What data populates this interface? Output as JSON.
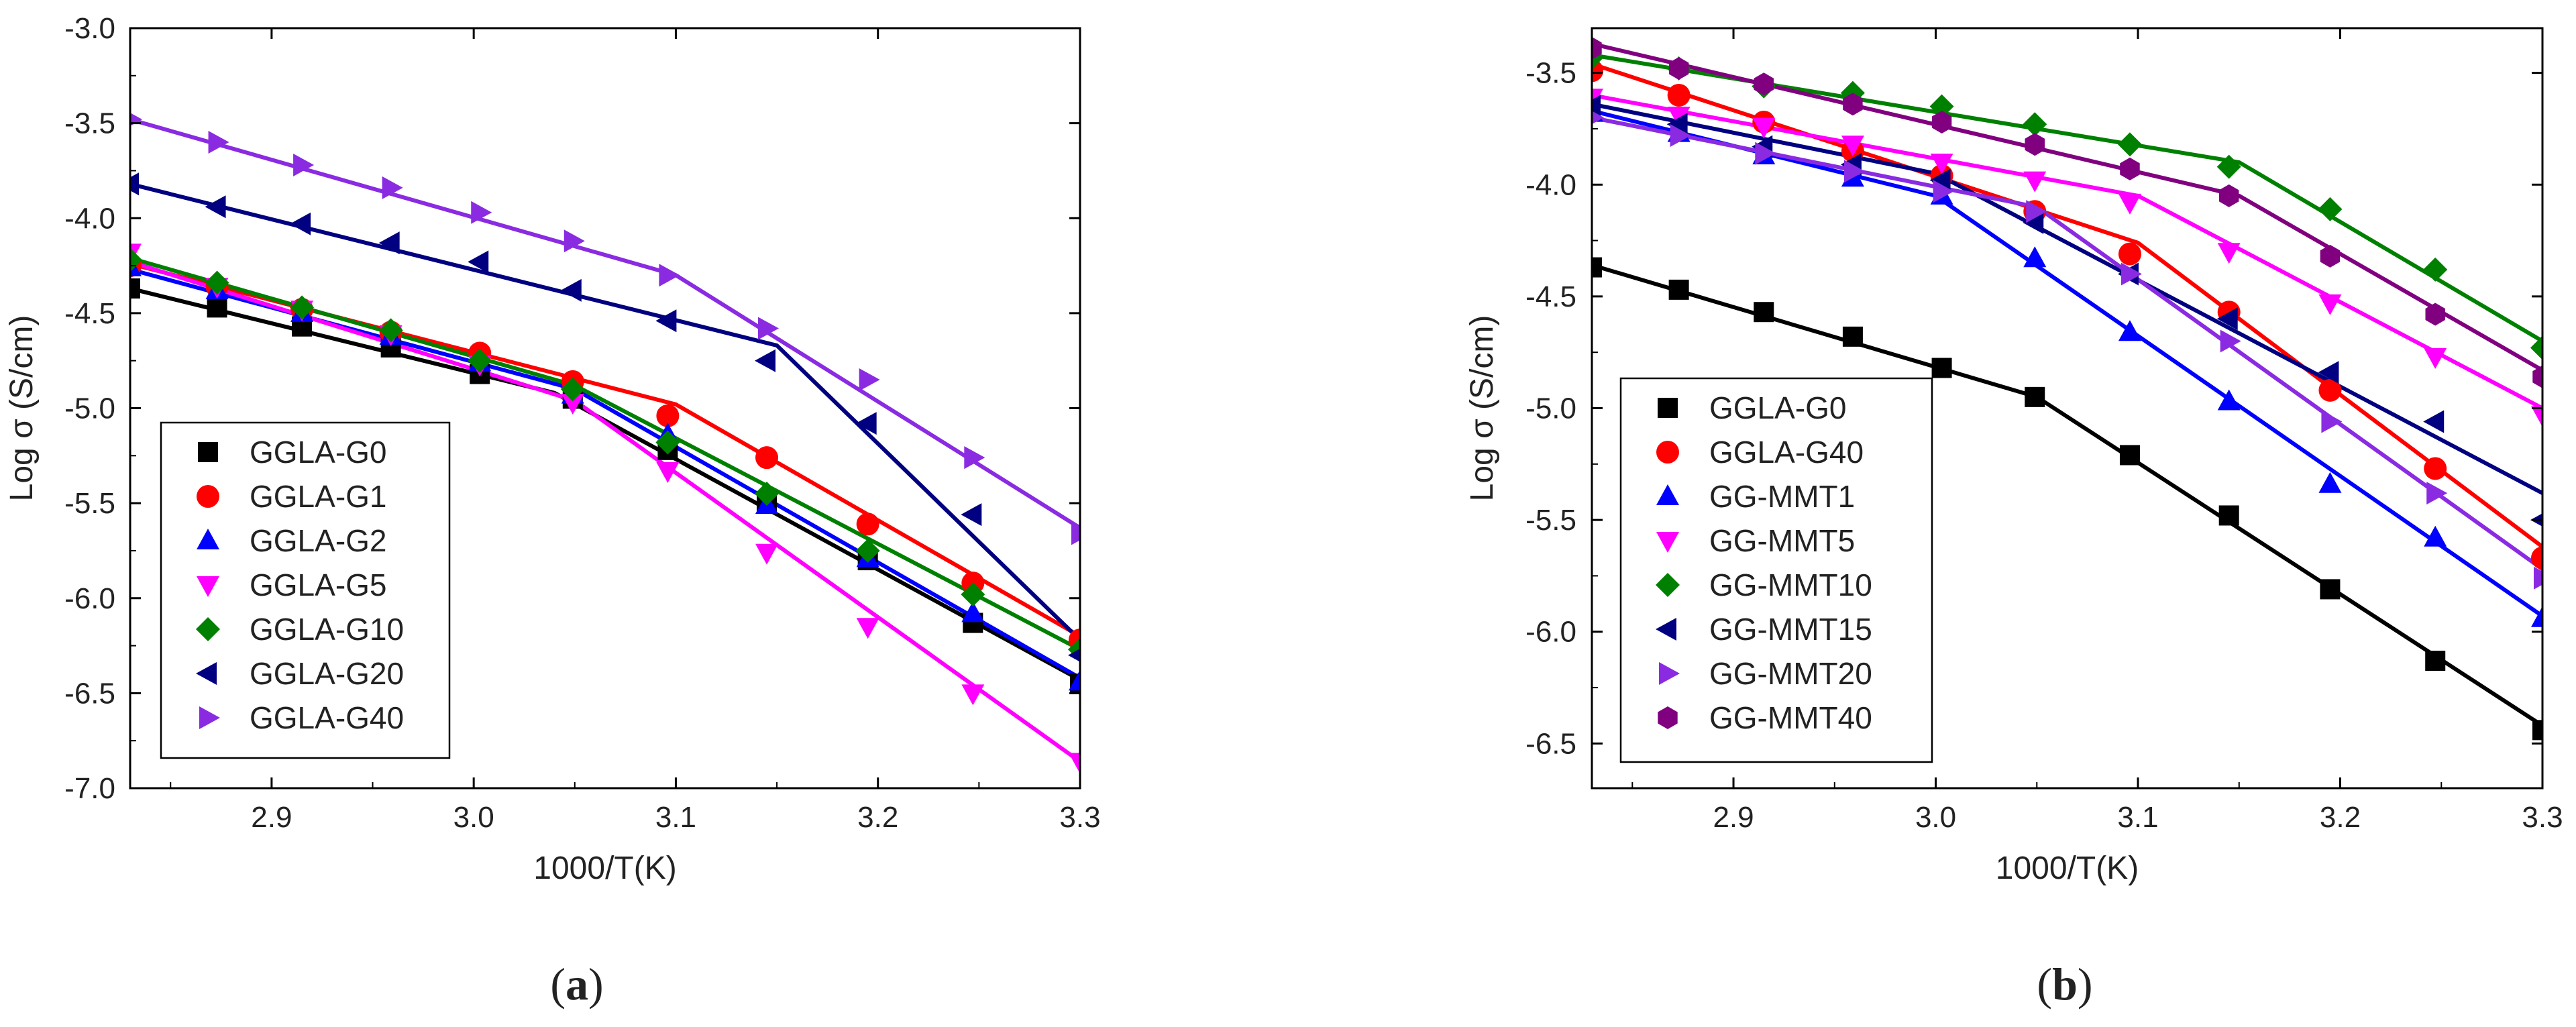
{
  "chart_data": [
    {
      "type": "scatter",
      "panel_label": {
        "open": "(",
        "letter": "a",
        "close": ")"
      },
      "xlabel": "1000/T(K)",
      "ylabel": "Log σ (S/cm)",
      "xlim": [
        2.83,
        3.3
      ],
      "ylim": [
        -7.0,
        -3.0
      ],
      "xticks": [
        2.9,
        3.0,
        3.1,
        3.2,
        3.3
      ],
      "xtick_labels": [
        "2.9",
        "3.0",
        "3.1",
        "3.2",
        "3.3"
      ],
      "yticks": [
        -3.0,
        -3.5,
        -4.0,
        -4.5,
        -5.0,
        -5.5,
        -6.0,
        -6.5,
        -7.0
      ],
      "ytick_labels": [
        "-3.0",
        "-3.5",
        "-4.0",
        "-4.5",
        "-5.0",
        "-5.5",
        "-6.0",
        "-6.5",
        "-7.0"
      ],
      "grid": false,
      "legend": "bottom-left",
      "series": [
        {
          "name": "GGLA-G0",
          "color": "#000000",
          "marker": "square",
          "x": [
            2.83,
            2.873,
            2.915,
            2.959,
            3.003,
            3.049,
            3.096,
            3.145,
            3.195,
            3.247,
            3.3
          ],
          "y": [
            -4.37,
            -4.47,
            -4.57,
            -4.68,
            -4.82,
            -4.95,
            -5.22,
            -5.49,
            -5.8,
            -6.13,
            -6.45
          ],
          "fit": [
            [
              2.83,
              -4.37
            ],
            [
              3.04,
              -4.92
            ],
            [
              3.3,
              -6.43
            ]
          ]
        },
        {
          "name": "GGLA-G1",
          "color": "#ff0000",
          "marker": "circle",
          "x": [
            2.83,
            2.873,
            2.915,
            2.959,
            3.003,
            3.049,
            3.096,
            3.145,
            3.195,
            3.247,
            3.3
          ],
          "y": [
            -4.25,
            -4.36,
            -4.48,
            -4.6,
            -4.71,
            -4.86,
            -5.04,
            -5.26,
            -5.61,
            -5.92,
            -6.22
          ],
          "fit": [
            [
              2.83,
              -4.24
            ],
            [
              3.1,
              -4.98
            ],
            [
              3.3,
              -6.2
            ]
          ]
        },
        {
          "name": "GGLA-G2",
          "color": "#0000ff",
          "marker": "triangle-up",
          "x": [
            2.83,
            2.873,
            2.915,
            2.959,
            3.003,
            3.049,
            3.096,
            3.145,
            3.195,
            3.247,
            3.3
          ],
          "y": [
            -4.26,
            -4.38,
            -4.5,
            -4.62,
            -4.76,
            -4.93,
            -5.14,
            -5.51,
            -5.79,
            -6.08,
            -6.44
          ],
          "fit": [
            [
              2.83,
              -4.27
            ],
            [
              3.05,
              -4.9
            ],
            [
              3.3,
              -6.42
            ]
          ]
        },
        {
          "name": "GGLA-G5",
          "color": "#ff00ff",
          "marker": "triangle-down",
          "x": [
            2.83,
            2.873,
            2.915,
            2.959,
            3.003,
            3.049,
            3.096,
            3.145,
            3.195,
            3.247,
            3.3
          ],
          "y": [
            -4.18,
            -4.36,
            -4.48,
            -4.61,
            -4.77,
            -4.97,
            -5.33,
            -5.76,
            -6.15,
            -6.5,
            -6.86
          ],
          "fit": [
            [
              2.83,
              -4.23
            ],
            [
              3.05,
              -4.96
            ],
            [
              3.3,
              -6.86
            ]
          ]
        },
        {
          "name": "GGLA-G10",
          "color": "#008000",
          "marker": "diamond",
          "x": [
            2.83,
            2.873,
            2.915,
            2.959,
            3.003,
            3.049,
            3.096,
            3.145,
            3.195,
            3.247,
            3.3
          ],
          "y": [
            -4.22,
            -4.34,
            -4.47,
            -4.59,
            -4.75,
            -4.9,
            -5.18,
            -5.45,
            -5.75,
            -5.98,
            -6.27
          ],
          "fit": [
            [
              2.83,
              -4.21
            ],
            [
              3.05,
              -4.88
            ],
            [
              3.3,
              -6.27
            ]
          ]
        },
        {
          "name": "GGLA-G20",
          "color": "#000080",
          "marker": "triangle-left",
          "x": [
            2.83,
            2.873,
            2.915,
            2.959,
            3.003,
            3.049,
            3.096,
            3.145,
            3.195,
            3.247,
            3.3
          ],
          "y": [
            -3.82,
            -3.94,
            -4.03,
            -4.13,
            -4.23,
            -4.38,
            -4.54,
            -4.75,
            -5.08,
            -5.56,
            -6.3
          ],
          "fit": [
            [
              2.83,
              -3.82
            ],
            [
              3.15,
              -4.67
            ],
            [
              3.3,
              -6.22
            ]
          ]
        },
        {
          "name": "GGLA-G40",
          "color": "#8a2be2",
          "marker": "triangle-right",
          "x": [
            2.83,
            2.873,
            2.915,
            2.959,
            3.003,
            3.049,
            3.096,
            3.145,
            3.195,
            3.247,
            3.3
          ],
          "y": [
            -3.48,
            -3.6,
            -3.72,
            -3.84,
            -3.97,
            -4.12,
            -4.3,
            -4.58,
            -4.85,
            -5.26,
            -5.66
          ],
          "fit": [
            [
              2.83,
              -3.48
            ],
            [
              3.1,
              -4.3
            ],
            [
              3.3,
              -5.63
            ]
          ]
        }
      ]
    },
    {
      "type": "scatter",
      "panel_label": {
        "open": "(",
        "letter": "b",
        "close": ")"
      },
      "xlabel": "1000/T(K)",
      "ylabel": "Log σ (S/cm)",
      "xlim": [
        2.83,
        3.3
      ],
      "ylim": [
        -6.7,
        -3.3
      ],
      "xticks": [
        2.9,
        3.0,
        3.1,
        3.2,
        3.3
      ],
      "xtick_labels": [
        "2.9",
        "3.0",
        "3.1",
        "3.2",
        "3.3"
      ],
      "yticks": [
        -3.5,
        -4.0,
        -4.5,
        -5.0,
        -5.5,
        -6.0,
        -6.5
      ],
      "ytick_labels": [
        "-3.5",
        "-4.0",
        "-4.5",
        "-5.0",
        "-5.5",
        "-6.0",
        "-6.5"
      ],
      "grid": false,
      "legend": "bottom-left",
      "series": [
        {
          "name": "GGLA-G0",
          "color": "#000000",
          "marker": "square",
          "x": [
            2.83,
            2.873,
            2.915,
            2.959,
            3.003,
            3.049,
            3.096,
            3.145,
            3.195,
            3.247,
            3.3
          ],
          "y": [
            -4.37,
            -4.47,
            -4.57,
            -4.68,
            -4.82,
            -4.95,
            -5.21,
            -5.48,
            -5.81,
            -6.13,
            -6.44
          ],
          "fit": [
            [
              2.83,
              -4.36
            ],
            [
              3.05,
              -4.95
            ],
            [
              3.3,
              -6.42
            ]
          ]
        },
        {
          "name": "GGLA-G40",
          "color": "#ff0000",
          "marker": "circle",
          "x": [
            2.83,
            2.873,
            2.915,
            2.959,
            3.003,
            3.049,
            3.096,
            3.145,
            3.195,
            3.247,
            3.3
          ],
          "y": [
            -3.49,
            -3.6,
            -3.72,
            -3.85,
            -3.96,
            -4.12,
            -4.31,
            -4.57,
            -4.92,
            -5.27,
            -5.67
          ],
          "fit": [
            [
              2.83,
              -3.46
            ],
            [
              3.1,
              -4.26
            ],
            [
              3.3,
              -5.62
            ]
          ]
        },
        {
          "name": "GG-MMT1",
          "color": "#0000ff",
          "marker": "triangle-up",
          "x": [
            2.83,
            2.873,
            2.915,
            2.959,
            3.003,
            3.049,
            3.096,
            3.145,
            3.195,
            3.247,
            3.3
          ],
          "y": [
            -3.68,
            -3.77,
            -3.87,
            -3.97,
            -4.05,
            -4.33,
            -4.66,
            -4.97,
            -5.34,
            -5.58,
            -5.94
          ],
          "fit": [
            [
              2.83,
              -3.67
            ],
            [
              3.0,
              -4.05
            ],
            [
              3.3,
              -5.93
            ]
          ]
        },
        {
          "name": "GG-MMT5",
          "color": "#ff00ff",
          "marker": "triangle-down",
          "x": [
            2.83,
            2.873,
            2.915,
            2.959,
            3.003,
            3.049,
            3.096,
            3.145,
            3.195,
            3.247,
            3.3
          ],
          "y": [
            -3.61,
            -3.69,
            -3.74,
            -3.82,
            -3.9,
            -3.98,
            -4.08,
            -4.3,
            -4.53,
            -4.77,
            -5.03
          ],
          "fit": [
            [
              2.83,
              -3.6
            ],
            [
              3.1,
              -4.05
            ],
            [
              3.3,
              -5.0
            ]
          ]
        },
        {
          "name": "GG-MMT10",
          "color": "#008000",
          "marker": "diamond",
          "x": [
            2.83,
            2.873,
            2.915,
            2.959,
            3.003,
            3.049,
            3.096,
            3.145,
            3.195,
            3.247,
            3.3
          ],
          "y": [
            -3.43,
            -3.48,
            -3.56,
            -3.59,
            -3.65,
            -3.73,
            -3.82,
            -3.92,
            -4.11,
            -4.38,
            -4.73
          ],
          "fit": [
            [
              2.83,
              -3.42
            ],
            [
              3.15,
              -3.9
            ],
            [
              3.3,
              -4.7
            ]
          ]
        },
        {
          "name": "GG-MMT15",
          "color": "#000080",
          "marker": "triangle-left",
          "x": [
            2.83,
            2.873,
            2.915,
            2.959,
            3.003,
            3.049,
            3.096,
            3.145,
            3.195,
            3.247,
            3.3
          ],
          "y": [
            -3.65,
            -3.73,
            -3.83,
            -3.91,
            -3.98,
            -4.17,
            -4.4,
            -4.6,
            -4.84,
            -5.06,
            -5.5
          ],
          "fit": [
            [
              2.83,
              -3.64
            ],
            [
              3.0,
              -3.95
            ],
            [
              3.3,
              -5.38
            ]
          ]
        },
        {
          "name": "GG-MMT20",
          "color": "#8a2be2",
          "marker": "triangle-right",
          "x": [
            2.83,
            2.873,
            2.915,
            2.959,
            3.003,
            3.049,
            3.096,
            3.145,
            3.195,
            3.247,
            3.3
          ],
          "y": [
            -3.7,
            -3.78,
            -3.86,
            -3.94,
            -4.03,
            -4.12,
            -4.4,
            -4.7,
            -5.06,
            -5.38,
            -5.76
          ],
          "fit": [
            [
              2.83,
              -3.7
            ],
            [
              3.05,
              -4.1
            ],
            [
              3.3,
              -5.72
            ]
          ]
        },
        {
          "name": "GG-MMT40",
          "color": "#800080",
          "marker": "hexagon",
          "x": [
            2.83,
            2.873,
            2.915,
            2.959,
            3.003,
            3.049,
            3.096,
            3.145,
            3.195,
            3.247,
            3.3
          ],
          "y": [
            -3.39,
            -3.48,
            -3.55,
            -3.64,
            -3.72,
            -3.82,
            -3.93,
            -4.05,
            -4.32,
            -4.58,
            -4.86
          ],
          "fit": [
            [
              2.83,
              -3.37
            ],
            [
              3.15,
              -4.05
            ],
            [
              3.3,
              -4.83
            ]
          ]
        }
      ]
    }
  ]
}
